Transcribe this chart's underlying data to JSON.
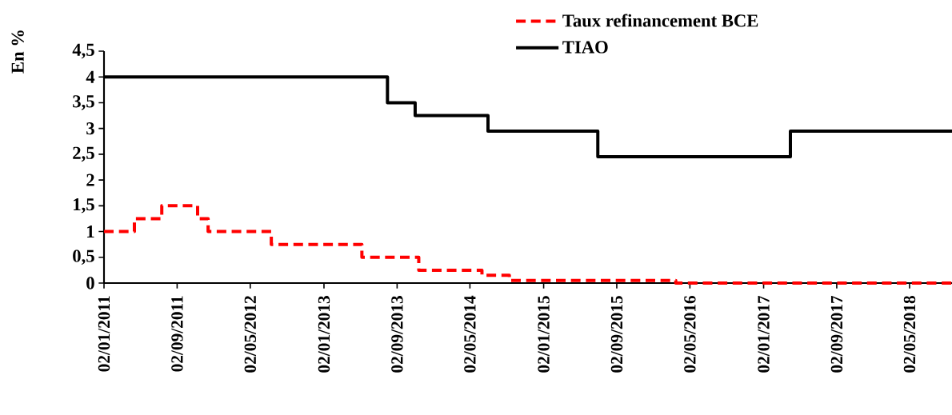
{
  "chart_data": {
    "type": "step",
    "ylabel": "En %",
    "xlim": [
      "2011-01-02",
      "2018-09-20"
    ],
    "xticks": [
      {
        "value": "2011-01-02",
        "label": "02/01/2011"
      },
      {
        "value": "2011-09-02",
        "label": "02/09/2011"
      },
      {
        "value": "2012-05-02",
        "label": "02/05/2012"
      },
      {
        "value": "2013-01-02",
        "label": "02/01/2013"
      },
      {
        "value": "2013-09-02",
        "label": "02/09/2013"
      },
      {
        "value": "2014-05-02",
        "label": "02/05/2014"
      },
      {
        "value": "2015-01-02",
        "label": "02/01/2015"
      },
      {
        "value": "2015-09-02",
        "label": "02/09/2015"
      },
      {
        "value": "2016-05-02",
        "label": "02/05/2016"
      },
      {
        "value": "2017-01-02",
        "label": "02/01/2017"
      },
      {
        "value": "2017-09-02",
        "label": "02/09/2017"
      },
      {
        "value": "2018-05-02",
        "label": "02/05/2018"
      }
    ],
    "ylim": [
      0,
      4.5
    ],
    "yticks": [
      0,
      {
        "value": 0.5,
        "label": "0,5"
      },
      1,
      {
        "value": 1.5,
        "label": "1,5"
      },
      2,
      {
        "value": 2.5,
        "label": "2,5"
      },
      3,
      {
        "value": 3.5,
        "label": "3,5"
      },
      4,
      {
        "value": 4.5,
        "label": "4,5"
      }
    ],
    "legend": "top right",
    "series": [
      {
        "name": "Taux refinancement BCE",
        "color": "#ff0000",
        "line_style": "dashed",
        "x": [
          "2011-01-02",
          "2011-04-13",
          "2011-07-13",
          "2011-11-09",
          "2011-12-14",
          "2012-07-11",
          "2013-05-08",
          "2013-11-13",
          "2014-06-11",
          "2014-09-10",
          "2016-03-16",
          "2018-09-20"
        ],
        "values": [
          1,
          1.25,
          1.5,
          1.25,
          1,
          0.75,
          0.5,
          0.25,
          0.15,
          0.05,
          0,
          0
        ]
      },
      {
        "name": "TIAO",
        "color": "#000000",
        "line_style": "solid",
        "x": [
          "2011-01-02",
          "2013-08-01",
          "2013-11-01",
          "2014-07-01",
          "2015-07-01",
          "2017-04-01",
          "2018-09-20"
        ],
        "values": [
          4,
          3.5,
          3.25,
          2.95,
          2.45,
          2.95,
          2.95
        ]
      }
    ]
  }
}
